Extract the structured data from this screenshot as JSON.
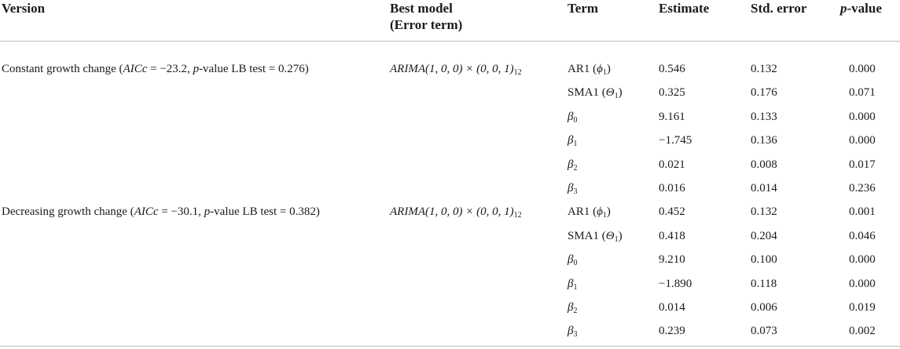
{
  "header": {
    "version": "Version",
    "best_model": [
      "Best model",
      "(Error term)"
    ],
    "term": "Term",
    "estimate": "Estimate",
    "std_error": "Std. error",
    "p_value": [
      "p",
      "-value"
    ]
  },
  "groups": [
    {
      "version": [
        "Constant growth change (",
        "AICc",
        " = −23.2, ",
        "p",
        "-value LB test = 0.276)"
      ],
      "model": [
        "ARIMA",
        "(1, 0, 0) × (0, 0, 1)",
        "12"
      ],
      "rows": [
        {
          "term": {
            "pre": "AR1 (",
            "sym": "ϕ",
            "sub": "1",
            "post": ")"
          },
          "estimate": "0.546",
          "std_error": "0.132",
          "p_value": "0.000"
        },
        {
          "term": {
            "pre": "SMA1 (",
            "sym": "Θ",
            "sub": "1",
            "post": ")"
          },
          "estimate": "0.325",
          "std_error": "0.176",
          "p_value": "0.071"
        },
        {
          "term": {
            "sym": "β",
            "sub": "0"
          },
          "estimate": "9.161",
          "std_error": "0.133",
          "p_value": "0.000"
        },
        {
          "term": {
            "sym": "β",
            "sub": "1"
          },
          "estimate": "−1.745",
          "std_error": "0.136",
          "p_value": "0.000"
        },
        {
          "term": {
            "sym": "β",
            "sub": "2"
          },
          "estimate": "0.021",
          "std_error": "0.008",
          "p_value": "0.017"
        },
        {
          "term": {
            "sym": "β",
            "sub": "3"
          },
          "estimate": "0.016",
          "std_error": "0.014",
          "p_value": "0.236"
        }
      ]
    },
    {
      "version": [
        "Decreasing growth change (",
        "AICc",
        " = −30.1, ",
        "p",
        "-value LB test = 0.382)"
      ],
      "model": [
        "ARIMA",
        "(1, 0, 0) × (0, 0, 1)",
        "12"
      ],
      "rows": [
        {
          "term": {
            "pre": "AR1 (",
            "sym": "ϕ",
            "sub": "1",
            "post": ")"
          },
          "estimate": "0.452",
          "std_error": "0.132",
          "p_value": "0.001"
        },
        {
          "term": {
            "pre": "SMA1 (",
            "sym": "Θ",
            "sub": "1",
            "post": ")"
          },
          "estimate": "0.418",
          "std_error": "0.204",
          "p_value": "0.046"
        },
        {
          "term": {
            "sym": "β",
            "sub": "0"
          },
          "estimate": "9.210",
          "std_error": "0.100",
          "p_value": "0.000"
        },
        {
          "term": {
            "sym": "β",
            "sub": "1"
          },
          "estimate": "−1.890",
          "std_error": "0.118",
          "p_value": "0.000"
        },
        {
          "term": {
            "sym": "β",
            "sub": "2"
          },
          "estimate": "0.014",
          "std_error": "0.006",
          "p_value": "0.019"
        },
        {
          "term": {
            "sym": "β",
            "sub": "3"
          },
          "estimate": "0.239",
          "std_error": "0.073",
          "p_value": "0.002"
        }
      ]
    }
  ]
}
